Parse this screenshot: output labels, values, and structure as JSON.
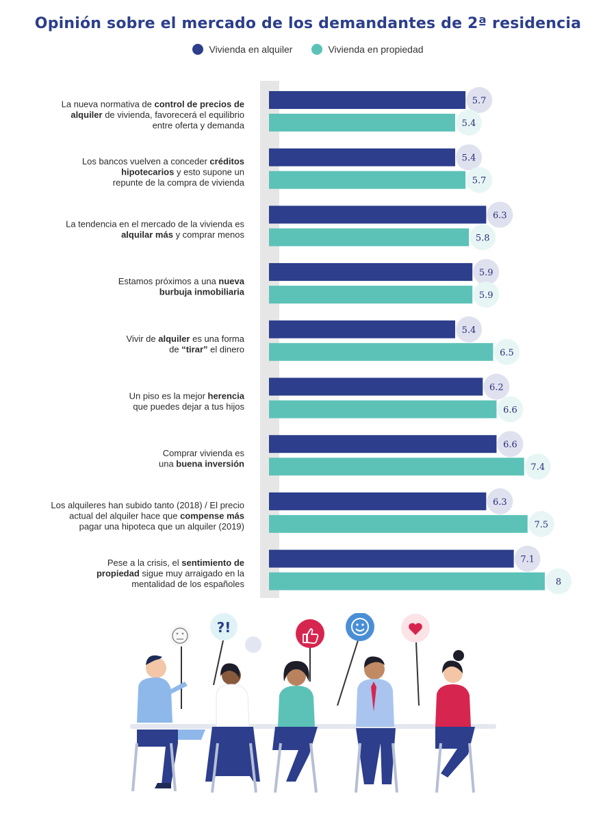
{
  "title": "Opinión sobre el mercado de los demandantes de 2ª residencia",
  "legend": [
    {
      "name": "Vivienda en alquiler",
      "color": "#2c3e8c"
    },
    {
      "name": "Vivienda en propiedad",
      "color": "#5cc2b8"
    }
  ],
  "colors": {
    "alquiler": "#2c3e8c",
    "propiedad": "#5cc2b8",
    "axis": "#e6e6e6",
    "badge_alquiler": "#dfe1ef",
    "badge_propiedad": "#e7f6f4"
  },
  "chart_data": {
    "type": "bar",
    "orientation": "horizontal",
    "categories": [
      [
        {
          "t": "La nueva normativa de "
        },
        {
          "t": "control de precios de",
          "b": true
        }
      ],
      [
        {
          "t": "Los bancos vuelven a conceder "
        },
        {
          "t": "créditos",
          "b": true
        }
      ],
      [
        {
          "t": "La tendencia en el mercado de la vivienda es"
        }
      ],
      [
        {
          "t": "Estamos próximos a una "
        },
        {
          "t": "nueva",
          "b": true
        }
      ],
      [
        {
          "t": "Vivir de "
        },
        {
          "t": "alquiler",
          "b": true
        },
        {
          "t": " es una forma"
        }
      ],
      [
        {
          "t": "Un piso es la mejor "
        },
        {
          "t": "herencia",
          "b": true
        }
      ],
      [
        {
          "t": "Comprar vivienda es"
        }
      ],
      [
        {
          "t": "Los alquileres han subido tanto (2018) / El precio"
        }
      ],
      [
        {
          "t": "Pese a la crisis, el "
        },
        {
          "t": "sentimiento de",
          "b": true
        }
      ]
    ],
    "category_lines": [
      [
        [
          {
            "t": "La nueva normativa de "
          },
          {
            "t": "control de precios de",
            "b": true
          }
        ],
        [
          {
            "t": "alquiler",
            "b": true
          },
          {
            "t": " de vivienda, favorecerá el equilibrio"
          }
        ],
        [
          {
            "t": "entre oferta y demanda"
          }
        ]
      ],
      [
        [
          {
            "t": "Los bancos vuelven a conceder "
          },
          {
            "t": "créditos",
            "b": true
          }
        ],
        [
          {
            "t": "hipotecarios",
            "b": true
          },
          {
            "t": " y esto supone un"
          }
        ],
        [
          {
            "t": "repunte de la compra de vivienda"
          }
        ]
      ],
      [
        [
          {
            "t": "La tendencia en el mercado de la vivienda es"
          }
        ],
        [
          {
            "t": "alquilar más",
            "b": true
          },
          {
            "t": " y comprar menos"
          }
        ]
      ],
      [
        [
          {
            "t": "Estamos próximos a una "
          },
          {
            "t": "nueva",
            "b": true
          }
        ],
        [
          {
            "t": "burbuja inmobiliaria",
            "b": true
          }
        ]
      ],
      [
        [
          {
            "t": "Vivir de "
          },
          {
            "t": "alquiler",
            "b": true
          },
          {
            "t": " es una forma"
          }
        ],
        [
          {
            "t": "de "
          },
          {
            "t": "“tirar”",
            "b": true
          },
          {
            "t": " el dinero"
          }
        ]
      ],
      [
        [
          {
            "t": "Un piso es la mejor "
          },
          {
            "t": "herencia",
            "b": true
          }
        ],
        [
          {
            "t": "que puedes dejar a tus hijos"
          }
        ]
      ],
      [
        [
          {
            "t": "Comprar vivienda es"
          }
        ],
        [
          {
            "t": "una "
          },
          {
            "t": "buena inversión",
            "b": true
          }
        ]
      ],
      [
        [
          {
            "t": "Los alquileres han subido tanto (2018) / El precio"
          }
        ],
        [
          {
            "t": "actual del alquiler hace que "
          },
          {
            "t": "compense más",
            "b": true
          }
        ],
        [
          {
            "t": "pagar una hipoteca que un alquiler (2019)"
          }
        ]
      ],
      [
        [
          {
            "t": "Pese a la crisis, el "
          },
          {
            "t": "sentimiento de",
            "b": true
          }
        ],
        [
          {
            "t": "propiedad",
            "b": true
          },
          {
            "t": " sigue muy arraigado en la"
          }
        ],
        [
          {
            "t": "mentalidad de los españoles"
          }
        ]
      ]
    ],
    "series": [
      {
        "name": "Vivienda en alquiler",
        "values": [
          5.7,
          5.4,
          6.3,
          5.9,
          5.4,
          6.2,
          6.6,
          6.3,
          7.1
        ],
        "labels": [
          "5.7",
          "5.4",
          "6.3",
          "5.9",
          "5.4",
          "6.2",
          "6.6",
          "6.3",
          "7.1"
        ]
      },
      {
        "name": "Vivienda en propiedad",
        "values": [
          5.4,
          5.7,
          5.8,
          5.9,
          6.5,
          6.6,
          7.4,
          7.5,
          8
        ],
        "labels": [
          "5.4",
          "5.7",
          "5.8",
          "5.9",
          "6.5",
          "6.6",
          "7.4",
          "7.5",
          "8"
        ]
      }
    ],
    "xlim": [
      0,
      8.5
    ],
    "grid": false,
    "legend_position": "top-center"
  },
  "illustration": {
    "signs": [
      "neutral-face-icon",
      "interrobang-icon",
      "thumbs-up-icon",
      "smiley-icon",
      "heart-icon"
    ],
    "sign_glyphs": [
      "?!"
    ]
  }
}
